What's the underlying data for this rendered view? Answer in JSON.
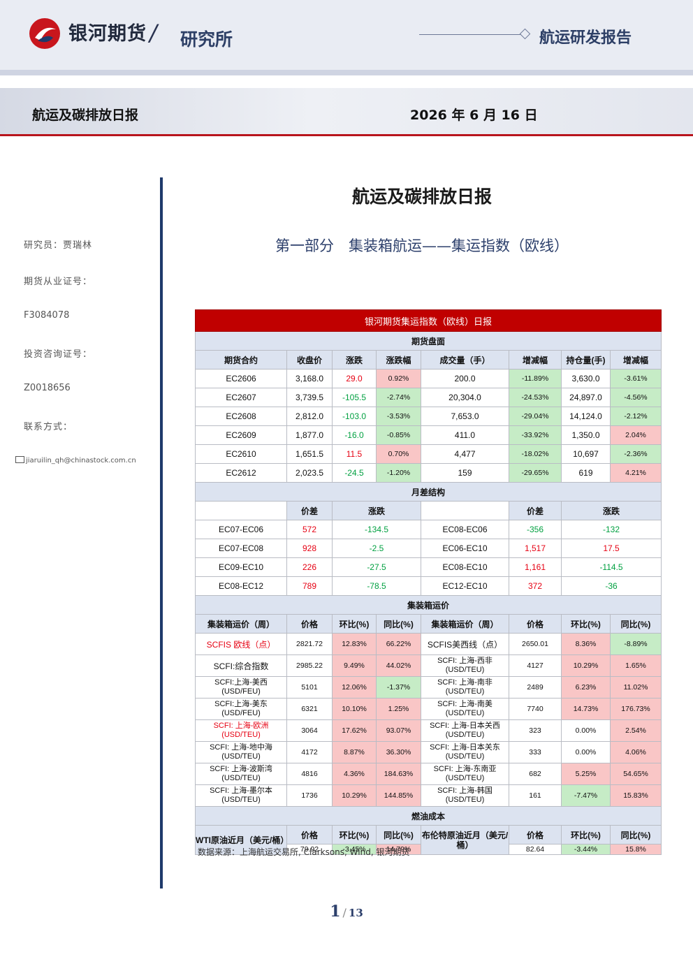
{
  "header": {
    "brand": "银河期货",
    "slash": "/",
    "dept": "研究所",
    "report_type": "航运研发报告"
  },
  "band": {
    "title": "航运及碳排放日报",
    "date": "2026 年 6 月 16 日"
  },
  "sidebar": {
    "researcher": "研究员：贾瑞林",
    "futures_cert_label": "期货从业证号：",
    "futures_cert": "F3084078",
    "invest_cert_label": "投资咨询证号：",
    "invest_cert": "Z0018656",
    "contact_label": "联系方式：",
    "email": "jiaruilin_qh@chinastock.com.cn"
  },
  "doc": {
    "title": "航运及碳排放日报",
    "subtitle": "第一部分　集装箱航运——集运指数（欧线）"
  },
  "table": {
    "title": "银河期货集运指数（欧线）日报",
    "futures": {
      "section": "期货盘面",
      "headers": [
        "期货合约",
        "收盘价",
        "涨跌",
        "涨跌幅",
        "成交量（手）",
        "增减幅",
        "持仓量(手)",
        "增减幅"
      ],
      "rows": [
        {
          "c": "EC2606",
          "close": "3,168.0",
          "chg": "29.0",
          "pct": "0.92%",
          "vol": "200.0",
          "vchg": "-11.89%",
          "oi": "3,630.0",
          "oichg": "-3.61%"
        },
        {
          "c": "EC2607",
          "close": "3,739.5",
          "chg": "-105.5",
          "pct": "-2.74%",
          "vol": "20,304.0",
          "vchg": "-24.53%",
          "oi": "24,897.0",
          "oichg": "-4.56%"
        },
        {
          "c": "EC2608",
          "close": "2,812.0",
          "chg": "-103.0",
          "pct": "-3.53%",
          "vol": "7,653.0",
          "vchg": "-29.04%",
          "oi": "14,124.0",
          "oichg": "-2.12%"
        },
        {
          "c": "EC2609",
          "close": "1,877.0",
          "chg": "-16.0",
          "pct": "-0.85%",
          "vol": "411.0",
          "vchg": "-33.92%",
          "oi": "1,350.0",
          "oichg": "2.04%"
        },
        {
          "c": "EC2610",
          "close": "1,651.5",
          "chg": "11.5",
          "pct": "0.70%",
          "vol": "4,477",
          "vchg": "-18.02%",
          "oi": "10,697",
          "oichg": "-2.36%"
        },
        {
          "c": "EC2612",
          "close": "2,023.5",
          "chg": "-24.5",
          "pct": "-1.20%",
          "vol": "159",
          "vchg": "-29.65%",
          "oi": "619",
          "oichg": "4.21%"
        }
      ]
    },
    "spread": {
      "section": "月差结构",
      "headers": [
        "价差",
        "涨跌",
        "价差",
        "涨跌"
      ],
      "rows": [
        {
          "a": "EC07-EC06",
          "av": "572",
          "ac": "-134.5",
          "b": "EC08-EC06",
          "bv": "-356",
          "bc": "-132"
        },
        {
          "a": "EC07-EC08",
          "av": "928",
          "ac": "-2.5",
          "b": "EC06-EC10",
          "bv": "1,517",
          "bc": "17.5"
        },
        {
          "a": "EC09-EC10",
          "av": "226",
          "ac": "-27.5",
          "b": "EC08-EC10",
          "bv": "1,161",
          "bc": "-114.5"
        },
        {
          "a": "EC08-EC12",
          "av": "789",
          "ac": "-78.5",
          "b": "EC12-EC10",
          "bv": "372",
          "bc": "-36"
        }
      ]
    },
    "freight": {
      "section": "集装箱运价",
      "headers": [
        "集装箱运价（周）",
        "价格",
        "环比(%)",
        "同比(%)",
        "集装箱运价（周）",
        "价格",
        "环比(%)",
        "同比(%)"
      ],
      "rows": [
        {
          "l1": "SCFIS 欧线（点）",
          "l2": "",
          "p": "2821.72",
          "m": "12.83%",
          "y": "66.22%",
          "r1": "SCFIS美西线（点）",
          "r2": "",
          "rp": "2650.01",
          "rm": "8.36%",
          "ry": "-8.89%"
        },
        {
          "l1": "SCFI:综合指数",
          "l2": "",
          "p": "2985.22",
          "m": "9.49%",
          "y": "44.02%",
          "r1": "SCFI: 上海-西非",
          "r2": "(USD/TEU)",
          "rp": "4127",
          "rm": "10.29%",
          "ry": "1.65%"
        },
        {
          "l1": "SCFI:上海-美西",
          "l2": "(USD/FEU)",
          "p": "5101",
          "m": "12.06%",
          "y": "-1.37%",
          "r1": "SCFI: 上海-南非",
          "r2": "(USD/TEU)",
          "rp": "2489",
          "rm": "6.23%",
          "ry": "11.02%"
        },
        {
          "l1": "SCFI:上海-美东",
          "l2": "(USD/FEU)",
          "p": "6321",
          "m": "10.10%",
          "y": "1.25%",
          "r1": "SCFI: 上海-南美",
          "r2": "(USD/TEU)",
          "rp": "7740",
          "rm": "14.73%",
          "ry": "176.73%"
        },
        {
          "l1": "SCFI: 上海-欧洲",
          "l2": "(USD/TEU)",
          "p": "3064",
          "m": "17.62%",
          "y": "93.07%",
          "r1": "SCFI: 上海-日本关西",
          "r2": "(USD/TEU)",
          "rp": "323",
          "rm": "0.00%",
          "ry": "2.54%"
        },
        {
          "l1": "SCFI: 上海-地中海",
          "l2": "(USD/TEU)",
          "p": "4172",
          "m": "8.87%",
          "y": "36.30%",
          "r1": "SCFI: 上海-日本关东",
          "r2": "(USD/TEU)",
          "rp": "333",
          "rm": "0.00%",
          "ry": "4.06%"
        },
        {
          "l1": "SCFI: 上海-波斯湾",
          "l2": "(USD/TEU)",
          "p": "4816",
          "m": "4.36%",
          "y": "184.63%",
          "r1": "SCFI: 上海-东南亚",
          "r2": "(USD/TEU)",
          "rp": "682",
          "rm": "5.25%",
          "ry": "54.65%"
        },
        {
          "l1": "SCFI: 上海-墨尔本",
          "l2": "(USD/TEU)",
          "p": "1736",
          "m": "10.29%",
          "y": "144.85%",
          "r1": "SCFI: 上海-韩国",
          "r2": "(USD/TEU)",
          "rp": "161",
          "rm": "-7.47%",
          "ry": "15.83%"
        }
      ]
    },
    "fuel": {
      "section": "燃油成本",
      "left_label": "WTI原油近月（美元/桶）",
      "right_label": "布伦特原油近月（美元/桶）",
      "headers": [
        "价格",
        "环比(%)",
        "同比(%)"
      ],
      "wti": {
        "p": "79.92",
        "m": "-3.45%",
        "y": "14.79%"
      },
      "brent": {
        "p": "82.64",
        "m": "-3.44%",
        "y": "15.8%"
      }
    },
    "source": "数据来源：上海航运交易所, Clarksons, Wind, 银河期货"
  },
  "pager": {
    "current": "1",
    "sep": "/",
    "total": "13"
  },
  "colors": {
    "up": "#e60012",
    "down": "#00a040",
    "title_bar": "#c00000",
    "header_fill": "#dce3f0"
  }
}
